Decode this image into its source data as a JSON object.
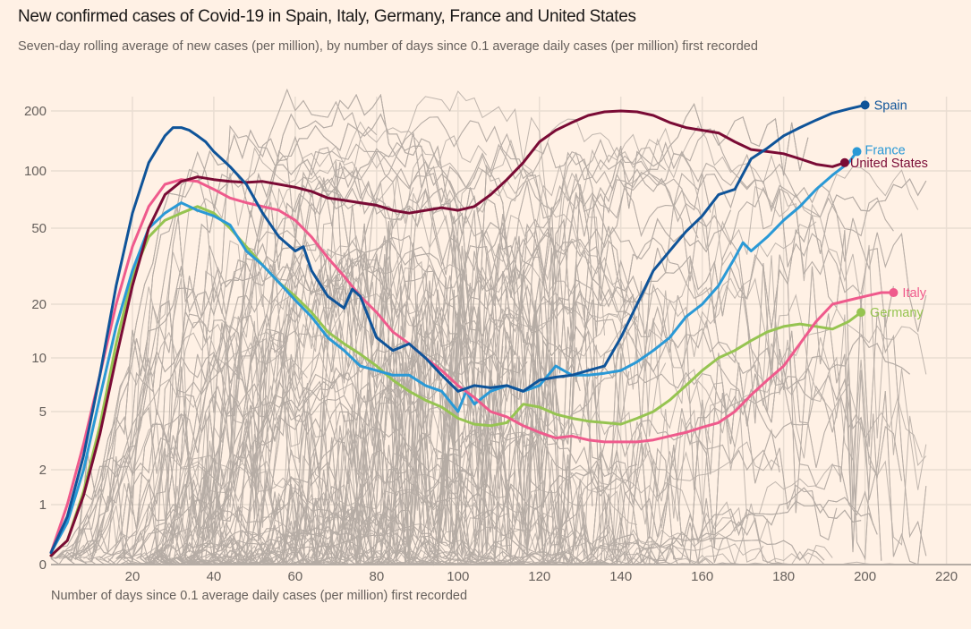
{
  "chart_data": {
    "type": "line",
    "title": "New confirmed cases of Covid-19 in Spain, Italy, Germany, France and United States",
    "subtitle": "Seven-day rolling average of new cases (per million), by number of days since 0.1 average daily cases (per million) first recorded",
    "xlabel": "Number of days since 0.1 average daily cases (per million) first recorded",
    "ylabel": "",
    "xlim": [
      0,
      225
    ],
    "ylim": [
      0,
      230
    ],
    "y_scale": "log (symlog near zero)",
    "x_ticks": [
      20,
      40,
      60,
      80,
      100,
      120,
      140,
      160,
      180,
      200,
      220
    ],
    "x_tick_labels": [
      "20",
      "40",
      "60",
      "80",
      "100",
      "120",
      "140",
      "160",
      "180",
      "200",
      "220"
    ],
    "y_ticks": [
      0,
      1,
      2,
      5,
      10,
      20,
      50,
      100,
      200
    ],
    "y_tick_labels": [
      "0",
      "1",
      "2",
      "5",
      "10",
      "20",
      "50",
      "100",
      "200"
    ],
    "grid": true,
    "legend": "direct labels at line ends (right)",
    "background_series_note": "Grey lines for other countries",
    "colors": {
      "background": "#fff1e5",
      "grid": "#e9ddd2",
      "other_countries": "#b5aca5",
      "Spain": "#0f5499",
      "Italy": "#ef5a8c",
      "Germany": "#96c451",
      "France": "#2a99d6",
      "United States": "#7a0b35"
    },
    "series": [
      {
        "name": "Spain",
        "label": "Spain",
        "x": [
          0,
          4,
          8,
          12,
          16,
          20,
          24,
          28,
          30,
          32,
          34,
          36,
          38,
          40,
          44,
          48,
          52,
          56,
          60,
          62,
          64,
          68,
          72,
          74,
          76,
          80,
          84,
          88,
          92,
          96,
          100,
          104,
          108,
          112,
          116,
          120,
          124,
          128,
          132,
          136,
          140,
          144,
          148,
          152,
          156,
          160,
          164,
          168,
          172,
          176,
          180,
          184,
          188,
          192,
          196,
          200
        ],
        "values": [
          0.2,
          0.8,
          2.5,
          8,
          25,
          60,
          110,
          150,
          165,
          165,
          160,
          150,
          140,
          125,
          105,
          85,
          60,
          45,
          38,
          40,
          30,
          22,
          19,
          24,
          22,
          13,
          11,
          12,
          10,
          8,
          6.5,
          7,
          6.8,
          7,
          6.5,
          7.5,
          7.8,
          8,
          8.5,
          9,
          13,
          20,
          30,
          38,
          48,
          58,
          75,
          80,
          115,
          130,
          150,
          165,
          180,
          195,
          205,
          215
        ]
      },
      {
        "name": "Italy",
        "label": "Italy",
        "x": [
          0,
          4,
          8,
          12,
          16,
          20,
          24,
          28,
          32,
          36,
          40,
          44,
          48,
          52,
          56,
          60,
          64,
          68,
          72,
          76,
          80,
          84,
          88,
          92,
          96,
          100,
          104,
          108,
          112,
          116,
          120,
          124,
          128,
          132,
          136,
          140,
          144,
          148,
          152,
          156,
          160,
          164,
          168,
          172,
          176,
          180,
          184,
          188,
          192,
          196,
          200,
          204,
          207
        ],
        "values": [
          0.2,
          1,
          3,
          8,
          20,
          40,
          65,
          85,
          90,
          88,
          80,
          72,
          68,
          65,
          62,
          55,
          45,
          35,
          28,
          22,
          18,
          14,
          12,
          10,
          8.5,
          7,
          6,
          5,
          4.6,
          4,
          3.6,
          3.3,
          3.4,
          3.2,
          3.1,
          3.1,
          3.1,
          3.2,
          3.4,
          3.6,
          3.9,
          4.2,
          5,
          6.2,
          7.5,
          9,
          12,
          16,
          20,
          21,
          22,
          23,
          23
        ]
      },
      {
        "name": "Germany",
        "label": "Germany",
        "x": [
          0,
          4,
          8,
          12,
          16,
          20,
          24,
          28,
          32,
          36,
          40,
          44,
          48,
          52,
          56,
          60,
          64,
          68,
          72,
          76,
          80,
          84,
          88,
          92,
          96,
          100,
          104,
          108,
          112,
          116,
          120,
          124,
          128,
          132,
          136,
          140,
          144,
          148,
          152,
          156,
          160,
          164,
          168,
          172,
          176,
          180,
          184,
          188,
          192,
          196,
          199
        ],
        "values": [
          0.15,
          0.4,
          1.3,
          4,
          12,
          28,
          45,
          55,
          60,
          65,
          60,
          50,
          40,
          32,
          26,
          22,
          18,
          14,
          12,
          10.5,
          9,
          7.5,
          6.5,
          5.8,
          5.3,
          4.5,
          4.1,
          4,
          4.2,
          5.5,
          5.3,
          4.8,
          4.5,
          4.3,
          4.2,
          4.1,
          4.5,
          5,
          5.8,
          7,
          8.5,
          10,
          11,
          12.5,
          14,
          15,
          15.5,
          15,
          14.5,
          16,
          18
        ]
      },
      {
        "name": "France",
        "label": "France",
        "x": [
          0,
          4,
          8,
          12,
          16,
          20,
          24,
          28,
          32,
          34,
          36,
          40,
          44,
          48,
          52,
          56,
          60,
          64,
          68,
          72,
          76,
          80,
          84,
          88,
          92,
          96,
          100,
          102,
          104,
          108,
          112,
          116,
          120,
          124,
          128,
          132,
          136,
          140,
          144,
          148,
          152,
          156,
          160,
          164,
          168,
          170,
          172,
          176,
          180,
          184,
          188,
          192,
          196,
          198
        ],
        "values": [
          0.2,
          0.7,
          2,
          6,
          15,
          30,
          50,
          60,
          68,
          65,
          62,
          58,
          52,
          38,
          32,
          26,
          21,
          17,
          13,
          11,
          9,
          8.5,
          8,
          8,
          7,
          6.5,
          5,
          6.5,
          5.5,
          6.5,
          7,
          6.5,
          7,
          9,
          8,
          8,
          8.2,
          8.5,
          9.5,
          11,
          13,
          17,
          20,
          25,
          35,
          42,
          38,
          45,
          55,
          65,
          80,
          95,
          110,
          125
        ]
      },
      {
        "name": "United States",
        "label": "United States",
        "x": [
          0,
          4,
          8,
          12,
          16,
          20,
          24,
          28,
          32,
          36,
          40,
          44,
          48,
          52,
          56,
          60,
          64,
          68,
          72,
          76,
          80,
          84,
          88,
          92,
          96,
          100,
          104,
          108,
          112,
          116,
          120,
          124,
          128,
          132,
          136,
          140,
          144,
          148,
          152,
          156,
          160,
          164,
          168,
          172,
          176,
          180,
          184,
          188,
          192,
          195
        ],
        "values": [
          0.15,
          0.4,
          1.2,
          3.5,
          10,
          25,
          50,
          75,
          88,
          93,
          90,
          88,
          87,
          88,
          85,
          82,
          78,
          72,
          70,
          68,
          66,
          62,
          60,
          62,
          64,
          62,
          65,
          75,
          90,
          110,
          140,
          160,
          175,
          190,
          198,
          200,
          198,
          190,
          175,
          165,
          160,
          155,
          140,
          128,
          125,
          122,
          115,
          108,
          105,
          110
        ]
      }
    ]
  }
}
